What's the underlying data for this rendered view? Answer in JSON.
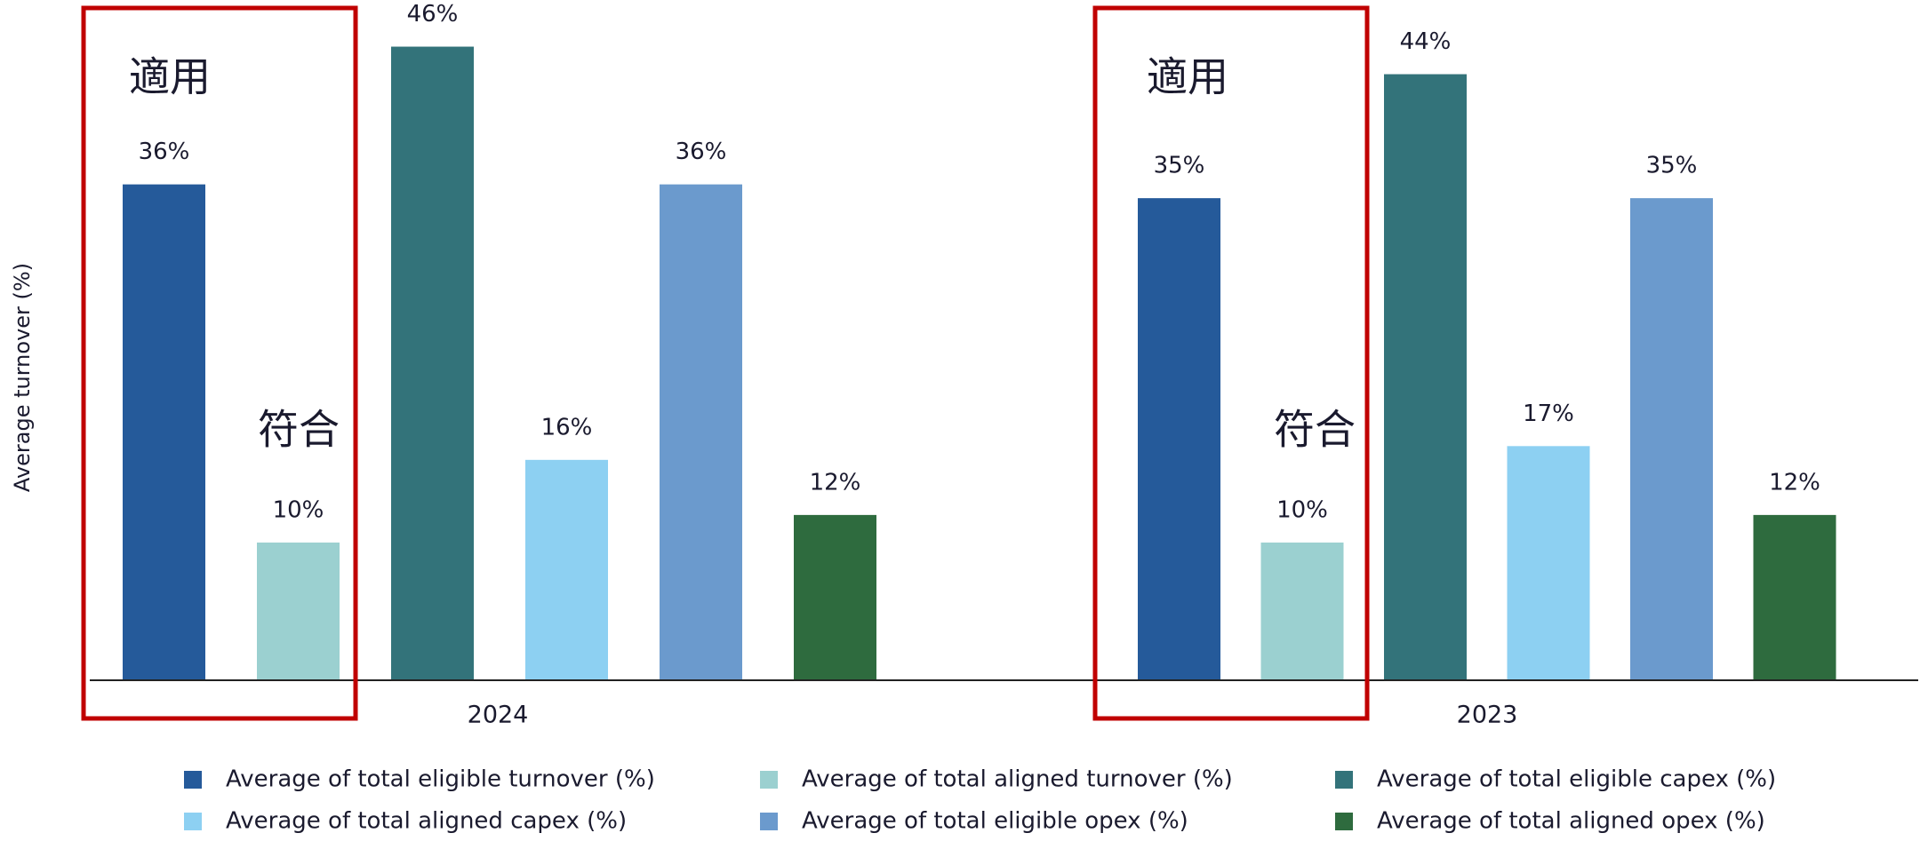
{
  "chart_data": {
    "type": "bar",
    "y_label": "Average turnover (%)",
    "categories": [
      "2024",
      "2023"
    ],
    "series": [
      {
        "name": "Average of total eligible turnover (%)",
        "color": "#255a9a",
        "values": [
          36,
          35
        ],
        "value_labels": [
          "36%",
          "35%"
        ]
      },
      {
        "name": "Average of total aligned turnover (%)",
        "color": "#9bd0d0",
        "values": [
          10,
          10
        ],
        "value_labels": [
          "10%",
          "10%"
        ]
      },
      {
        "name": "Average of total eligible capex (%)",
        "color": "#33737a",
        "values": [
          46,
          44
        ],
        "value_labels": [
          "46%",
          "44%"
        ]
      },
      {
        "name": "Average of total aligned capex (%)",
        "color": "#8dd0f2",
        "values": [
          16,
          17
        ],
        "value_labels": [
          "16%",
          "17%"
        ]
      },
      {
        "name": "Average of total eligible opex (%)",
        "color": "#6b9acd",
        "values": [
          36,
          35
        ],
        "value_labels": [
          "36%",
          "35%"
        ]
      },
      {
        "name": "Average of total aligned opex (%)",
        "color": "#2e6b3e",
        "values": [
          12,
          12
        ],
        "value_labels": [
          "12%",
          "12%"
        ]
      }
    ],
    "annotations": [
      "適用",
      "符合",
      "適用",
      "符合"
    ],
    "ylim": [
      0,
      49
    ],
    "highlight_color": "#c00000"
  }
}
